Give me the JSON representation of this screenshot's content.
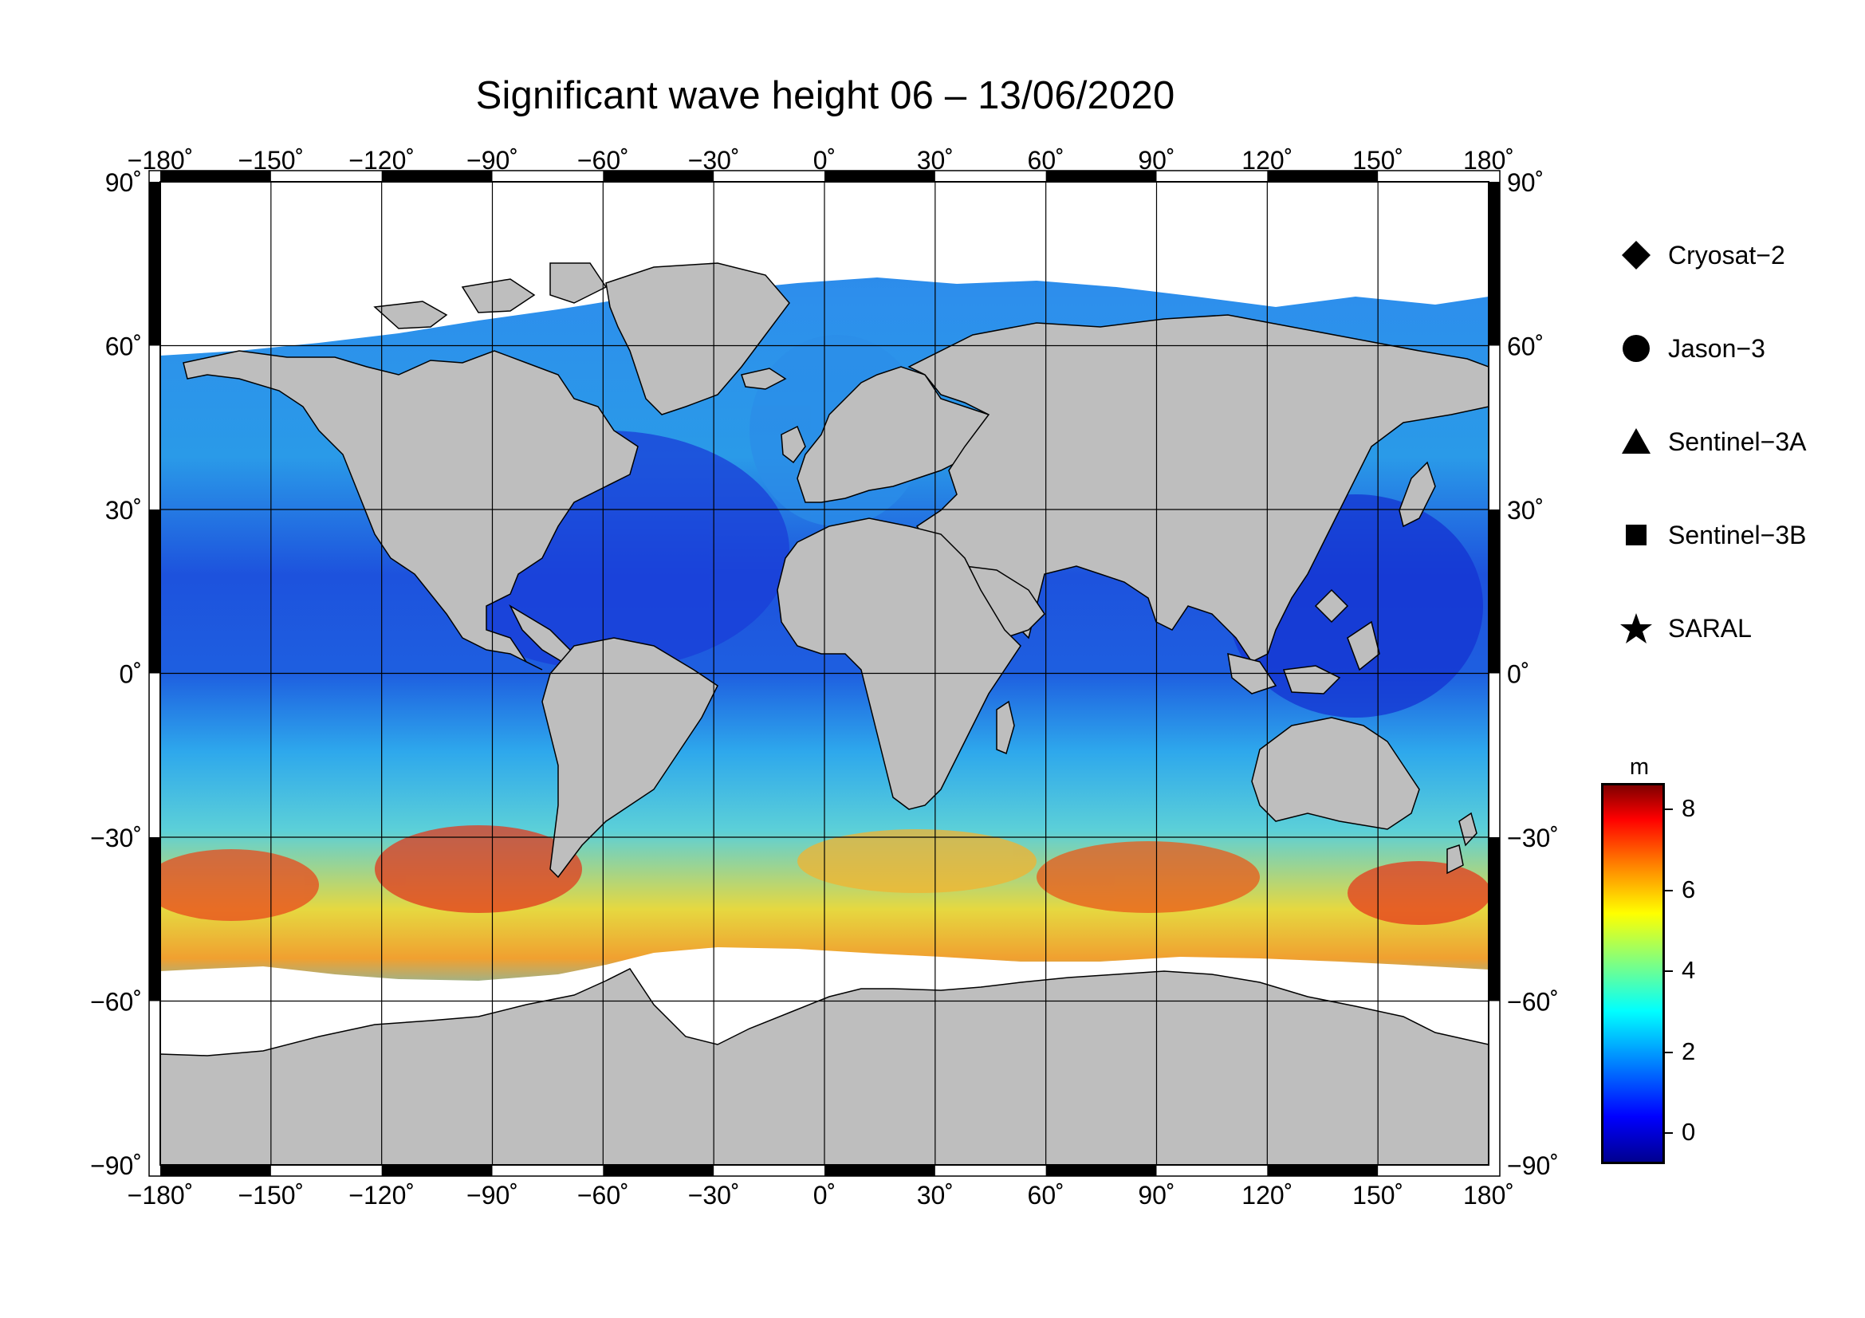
{
  "title": "Significant wave height 06 – 13/06/2020",
  "lon_ticks": [
    "−180˚",
    "−150˚",
    "−120˚",
    "−90˚",
    "−60˚",
    "−30˚",
    "0˚",
    "30˚",
    "60˚",
    "90˚",
    "120˚",
    "150˚",
    "180˚"
  ],
  "lat_ticks": [
    "90˚",
    "60˚",
    "30˚",
    "0˚",
    "−30˚",
    "−60˚",
    "−90˚"
  ],
  "legend": [
    {
      "label": "Cryosat−2",
      "symbol": "diamond"
    },
    {
      "label": "Jason−3",
      "symbol": "circle"
    },
    {
      "label": "Sentinel−3A",
      "symbol": "triangle"
    },
    {
      "label": "Sentinel−3B",
      "symbol": "square"
    },
    {
      "label": "SARAL",
      "symbol": "star"
    }
  ],
  "colorbar": {
    "unit": "m",
    "ticks": [
      "8",
      "6",
      "4",
      "2",
      "0"
    ],
    "range_m": [
      -0.7,
      8.6
    ],
    "colors": [
      "#00008f",
      "#0000ff",
      "#0080ff",
      "#00ffff",
      "#80ff80",
      "#ffff00",
      "#ff8000",
      "#ff0000",
      "#800000"
    ]
  },
  "colors": {
    "land": "#bebebe",
    "ice": "#ffffff",
    "ocean_low": "#1a3fd8",
    "ocean_mid": "#2fa8ee",
    "ocean_high": "#f5c32a",
    "ocean_peak": "#d9261c"
  }
}
